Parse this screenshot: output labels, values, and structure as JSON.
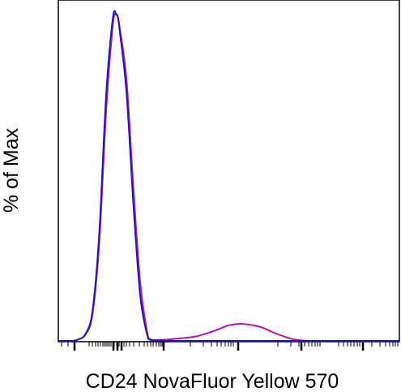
{
  "chart_data": {
    "type": "line",
    "title": "",
    "xlabel": "CD24 NovaFluor Yellow 570",
    "ylabel": "% of Max",
    "x_scale": "logicle",
    "tick_labels_shown": false,
    "xlim": [
      0,
      100
    ],
    "ylim": [
      0,
      100
    ],
    "grid": false,
    "legend": "none",
    "series": [
      {
        "color": "#b512b5",
        "x": [
          0,
          4,
          6,
          8,
          10,
          12,
          14,
          16,
          17,
          17.5,
          18,
          20,
          22,
          24,
          26,
          27,
          30,
          33,
          40,
          45,
          48,
          50,
          53,
          55,
          57,
          60,
          63,
          65,
          68,
          70,
          72,
          75,
          85,
          100
        ],
        "y": [
          0,
          0,
          0.5,
          2,
          8,
          30,
          70,
          97,
          100,
          99,
          96,
          80,
          47,
          18,
          3,
          0.5,
          0.3,
          0.5,
          1.3,
          2.8,
          4,
          4.8,
          5.2,
          5.1,
          4.8,
          4,
          2.6,
          1.8,
          0.7,
          0.3,
          0.1,
          0,
          0,
          0
        ]
      },
      {
        "color": "#1c1cb5",
        "x": [
          0,
          4,
          6,
          8,
          10,
          12,
          14,
          16,
          17,
          17.5,
          18,
          20,
          22,
          24,
          26,
          27,
          30,
          35,
          45,
          55,
          65,
          75,
          85,
          100
        ],
        "y": [
          0,
          0,
          0.5,
          2.2,
          9,
          33,
          75,
          99,
          100,
          99,
          95,
          76,
          42,
          14,
          2,
          0.3,
          0.1,
          0,
          0,
          0,
          0,
          0,
          0,
          0
        ]
      }
    ]
  }
}
